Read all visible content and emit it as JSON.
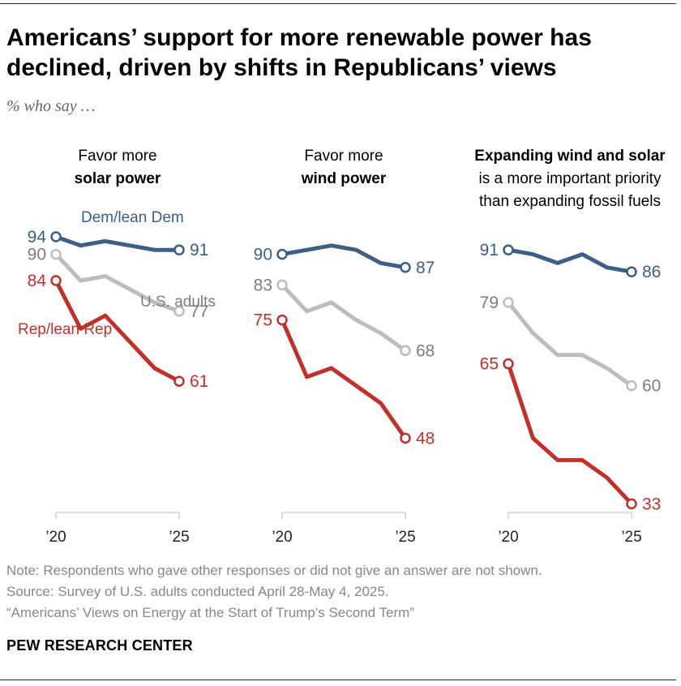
{
  "title": "Americans’ support for more renewable power has declined, driven by shifts in Republicans’ views",
  "subtitle": "% who say …",
  "colors": {
    "dem": "#3d5f86",
    "adults": "#bdbdbd",
    "rep": "#c0312b",
    "adults_text": "#7d7d7d",
    "axis": "#bbbbbb"
  },
  "series_labels": {
    "dem": "Dem/lean Dem",
    "adults": "U.S. adults",
    "rep": "Rep/lean Rep"
  },
  "chart_data": [
    {
      "type": "line",
      "title_lines": [
        {
          "text": "Favor more",
          "bold": false
        },
        {
          "text": "solar power",
          "bold": true
        }
      ],
      "x": [
        2020,
        2021,
        2022,
        2023,
        2024,
        2025
      ],
      "x_tick_labels": [
        "’20",
        "’25"
      ],
      "ylim": [
        20,
        100
      ],
      "series": [
        {
          "key": "dem",
          "name": "Dem/lean Dem",
          "values": [
            94,
            92,
            93,
            92,
            91,
            91
          ]
        },
        {
          "key": "adults",
          "name": "U.S. adults",
          "values": [
            90,
            84,
            85,
            82,
            79,
            77
          ]
        },
        {
          "key": "rep",
          "name": "Rep/lean Rep",
          "values": [
            84,
            73,
            76,
            70,
            64,
            61
          ]
        }
      ],
      "start_labels": [
        "94",
        "90",
        "84"
      ],
      "end_labels": [
        "91",
        "77",
        "61"
      ]
    },
    {
      "type": "line",
      "title_lines": [
        {
          "text": "Favor more",
          "bold": false
        },
        {
          "text": "wind power",
          "bold": true
        }
      ],
      "x": [
        2020,
        2021,
        2022,
        2023,
        2024,
        2025
      ],
      "x_tick_labels": [
        "’20",
        "’25"
      ],
      "ylim": [
        20,
        100
      ],
      "series": [
        {
          "key": "dem",
          "name": "Dem/lean Dem",
          "values": [
            90,
            91,
            92,
            91,
            88,
            87
          ]
        },
        {
          "key": "adults",
          "name": "U.S. adults",
          "values": [
            83,
            77,
            79,
            75,
            72,
            68
          ]
        },
        {
          "key": "rep",
          "name": "Rep/lean Rep",
          "values": [
            75,
            62,
            64,
            60,
            56,
            48
          ]
        }
      ],
      "start_labels": [
        "90",
        "83",
        "75"
      ],
      "end_labels": [
        "87",
        "68",
        "48"
      ]
    },
    {
      "type": "line",
      "title_lines": [
        {
          "text": "Expanding wind and solar",
          "bold": true
        },
        {
          "text": "is a more important priority",
          "bold": false
        },
        {
          "text": "than expanding fossil fuels",
          "bold": false
        }
      ],
      "x": [
        2020,
        2021,
        2022,
        2023,
        2024,
        2025
      ],
      "x_tick_labels": [
        "’20",
        "’25"
      ],
      "ylim": [
        20,
        100
      ],
      "series": [
        {
          "key": "dem",
          "name": "Dem/lean Dem",
          "values": [
            91,
            90,
            88,
            90,
            87,
            86
          ]
        },
        {
          "key": "adults",
          "name": "U.S. adults",
          "values": [
            79,
            72,
            67,
            67,
            64,
            60
          ]
        },
        {
          "key": "rep",
          "name": "Rep/lean Rep",
          "values": [
            65,
            48,
            43,
            43,
            39,
            33
          ]
        }
      ],
      "start_labels": [
        "91",
        "79",
        "65"
      ],
      "end_labels": [
        "86",
        "60",
        "33"
      ]
    }
  ],
  "notes": {
    "note": "Note: Respondents who gave other responses or did not give an answer are not shown.",
    "source": "Source: Survey of U.S. adults conducted April 28-May 4, 2025.",
    "report": "“Americans’ Views on Energy at the Start of Trump’s Second Term”"
  },
  "brand": "PEW RESEARCH CENTER"
}
